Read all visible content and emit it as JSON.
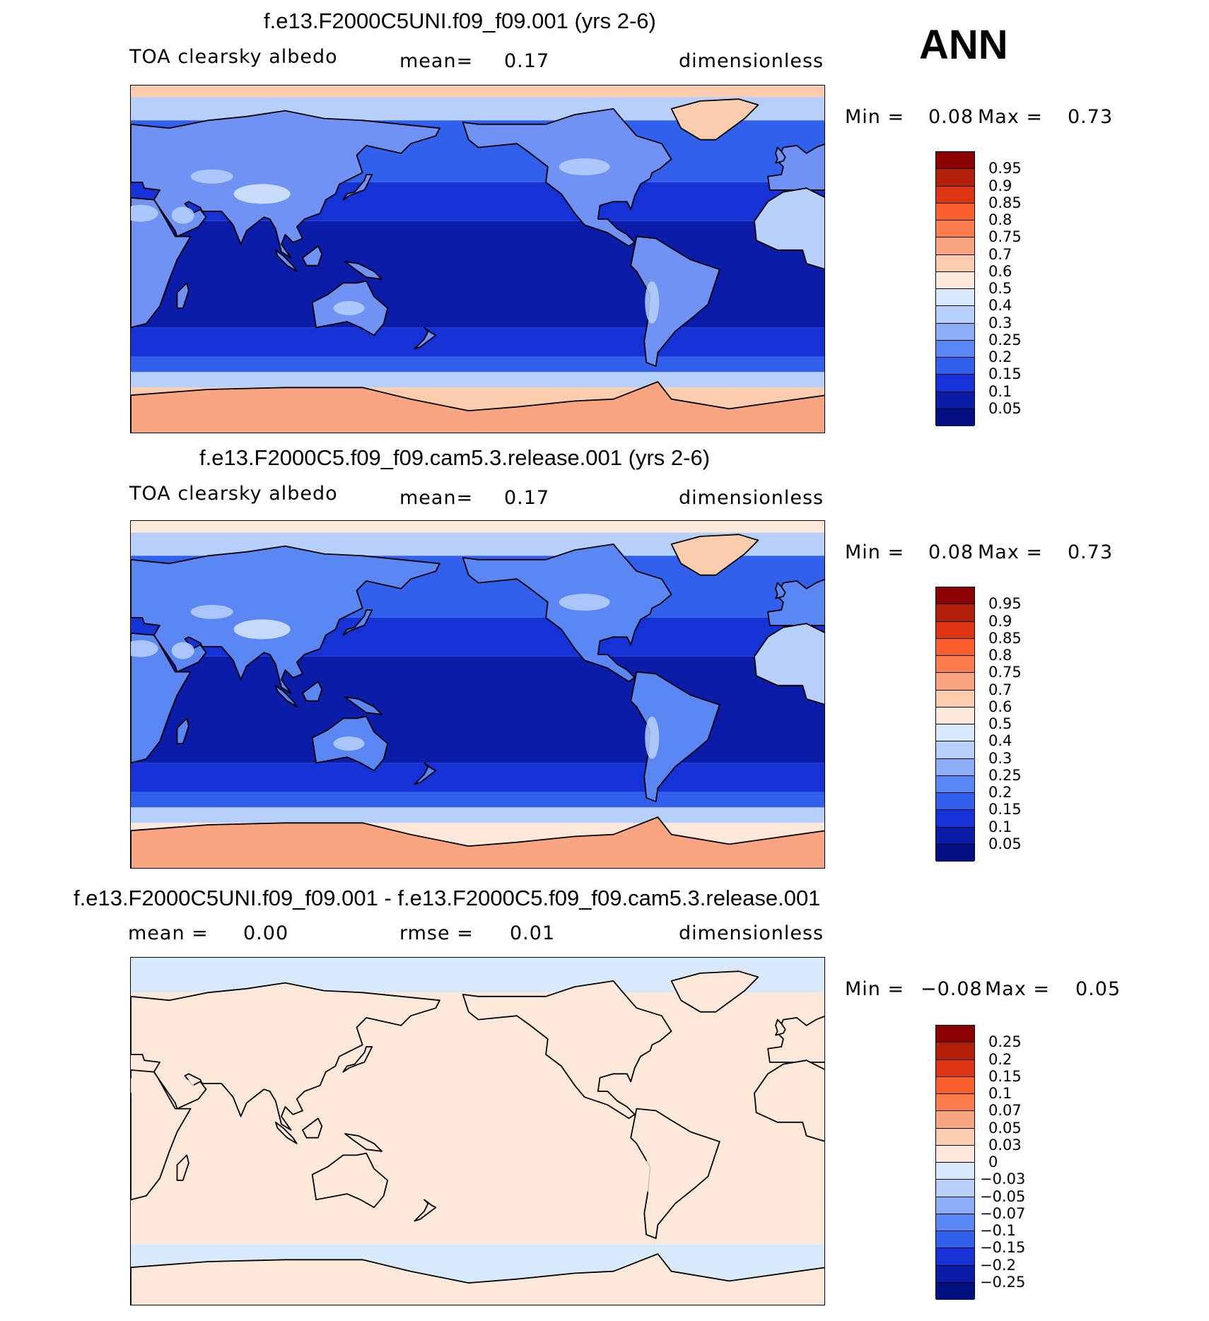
{
  "season": "ANN",
  "panels": [
    {
      "title": "f.e13.F2000C5UNI.f09_f09.001 (yrs 2-6)",
      "left_label": "TOA clearsky albedo",
      "mid_label": "mean=",
      "mid_value": "0.17",
      "right_label": "dimensionless",
      "min_label": "Min =",
      "min_value": "0.08",
      "max_label": "Max =",
      "max_value": "0.73",
      "levels": [
        "0.95",
        "0.9",
        "0.85",
        "0.8",
        "0.75",
        "0.7",
        "0.6",
        "0.5",
        "0.4",
        "0.3",
        "0.25",
        "0.2",
        "0.15",
        "0.1",
        "0.05"
      ],
      "colors": [
        "#8b0000",
        "#b41f0a",
        "#dc3414",
        "#fa5f2d",
        "#fa7d4b",
        "#faa582",
        "#fcccae",
        "#fde8da",
        "#d8e9fb",
        "#b7d0fb",
        "#8aaef8",
        "#5a87f4",
        "#3060ec",
        "#1432d6",
        "#0a1ca8",
        "#001080"
      ],
      "map": {
        "land": "#6f92f4",
        "ocean_tropics": "#0a1ca8",
        "ocean_mid": "#1432d6",
        "ocean_high": "#3060ec",
        "polar": "#fcccae",
        "arctic_sea": "#b7d0fb",
        "antarctica": "#faa582",
        "greenland": "#fcccae",
        "desert": "#b7d0fb",
        "tibet": "#d8e9fb"
      }
    },
    {
      "title": "f.e13.F2000C5.f09_f09.cam5.3.release.001 (yrs 2-6)",
      "left_label": "TOA clearsky albedo",
      "mid_label": "mean=",
      "mid_value": "0.17",
      "right_label": "dimensionless",
      "min_label": "Min =",
      "min_value": "0.08",
      "max_label": "Max =",
      "max_value": "0.73",
      "levels": [
        "0.95",
        "0.9",
        "0.85",
        "0.8",
        "0.75",
        "0.7",
        "0.6",
        "0.5",
        "0.4",
        "0.3",
        "0.25",
        "0.2",
        "0.15",
        "0.1",
        "0.05"
      ],
      "colors": [
        "#8b0000",
        "#b41f0a",
        "#dc3414",
        "#fa5f2d",
        "#fa7d4b",
        "#faa582",
        "#fcccae",
        "#fde8da",
        "#d8e9fb",
        "#b7d0fb",
        "#8aaef8",
        "#5a87f4",
        "#3060ec",
        "#1432d6",
        "#0a1ca8",
        "#001080"
      ],
      "map": {
        "land": "#5a87f4",
        "ocean_tropics": "#0a1ca8",
        "ocean_mid": "#1432d6",
        "ocean_high": "#3060ec",
        "polar": "#fde8da",
        "arctic_sea": "#b7d0fb",
        "antarctica": "#faa582",
        "greenland": "#fcccae",
        "desert": "#b7d0fb",
        "tibet": "#d8e9fb"
      }
    },
    {
      "title": "f.e13.F2000C5UNI.f09_f09.001 - f.e13.F2000C5.f09_f09.cam5.3.release.001",
      "left_label": "mean =",
      "left_value": "0.00",
      "mid_label": "rmse =",
      "mid_value": "0.01",
      "right_label": "dimensionless",
      "min_label": "Min =",
      "min_value": "−0.08",
      "max_label": "Max =",
      "max_value": "0.05",
      "levels": [
        "0.25",
        "0.2",
        "0.15",
        "0.1",
        "0.07",
        "0.05",
        "0.03",
        "0",
        "−0.03",
        "−0.05",
        "−0.07",
        "−0.1",
        "−0.15",
        "−0.2",
        "−0.25"
      ],
      "colors": [
        "#8b0000",
        "#b41f0a",
        "#dc3414",
        "#fa5f2d",
        "#fa7d4b",
        "#faa582",
        "#fcccae",
        "#fde8da",
        "#d8e9fb",
        "#b7d0fb",
        "#8aaef8",
        "#5a87f4",
        "#3060ec",
        "#1432d6",
        "#0a1ca8",
        "#001080"
      ],
      "map": {
        "land": "#fde8da",
        "ocean_tropics": "#fde8da",
        "ocean_mid": "#fde8da",
        "ocean_high": "#fde8da",
        "polar": "#d8e9fb",
        "arctic_sea": "#d8e9fb",
        "antarctica": "#fde8da",
        "greenland": "#fde8da",
        "desert": "#fde8da",
        "tibet": "#fde8da"
      }
    }
  ]
}
